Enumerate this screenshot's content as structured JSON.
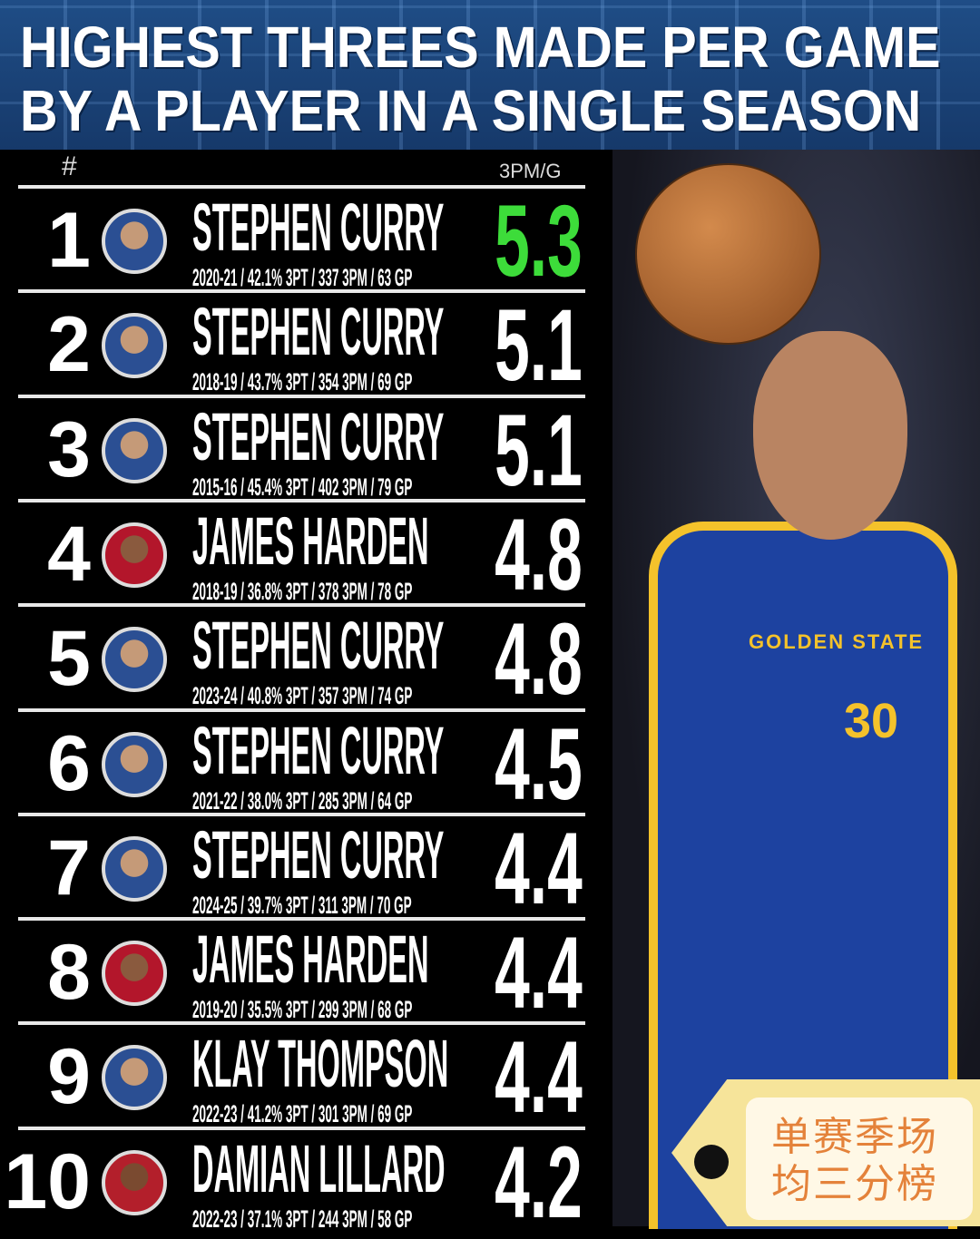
{
  "title": {
    "line1": "HIGHEST THREES MADE PER GAME",
    "line2": "BY A PLAYER IN A SINGLE SEASON"
  },
  "header": {
    "rank": "#",
    "stat": "3PM/G"
  },
  "colors": {
    "leader": "#3ddc3a",
    "banner": "#1f4d86",
    "tag": "#f6e49a"
  },
  "rows": [
    {
      "rank": "1",
      "name": "STEPHEN CURRY",
      "stats": "2020-21 / 42.1% 3PT / 337 3PM / 63 GP",
      "value": "5.3",
      "team": "gsw"
    },
    {
      "rank": "2",
      "name": "STEPHEN CURRY",
      "stats": "2018-19 / 43.7% 3PT / 354 3PM / 69 GP",
      "value": "5.1",
      "team": "gsw"
    },
    {
      "rank": "3",
      "name": "STEPHEN CURRY",
      "stats": "2015-16 / 45.4% 3PT / 402 3PM / 79 GP",
      "value": "5.1",
      "team": "gsw"
    },
    {
      "rank": "4",
      "name": "JAMES HARDEN",
      "stats": "2018-19 / 36.8% 3PT / 378 3PM / 78 GP",
      "value": "4.8",
      "team": "hou"
    },
    {
      "rank": "5",
      "name": "STEPHEN CURRY",
      "stats": "2023-24 / 40.8% 3PT / 357 3PM / 74 GP",
      "value": "4.8",
      "team": "gsw"
    },
    {
      "rank": "6",
      "name": "STEPHEN CURRY",
      "stats": "2021-22 / 38.0% 3PT / 285 3PM / 64 GP",
      "value": "4.5",
      "team": "gsw"
    },
    {
      "rank": "7",
      "name": "STEPHEN CURRY",
      "stats": "2024-25 / 39.7% 3PT / 311 3PM / 70 GP",
      "value": "4.4",
      "team": "gsw"
    },
    {
      "rank": "8",
      "name": "JAMES HARDEN",
      "stats": "2019-20 / 35.5% 3PT / 299 3PM / 68 GP",
      "value": "4.4",
      "team": "hou"
    },
    {
      "rank": "9",
      "name": "KLAY THOMPSON",
      "stats": "2022-23 / 41.2% 3PT / 301 3PM / 69 GP",
      "value": "4.4",
      "team": "gsw"
    },
    {
      "rank": "10",
      "name": "DAMIAN LILLARD",
      "stats": "2022-23 / 37.1% 3PT / 244 3PM / 58 GP",
      "value": "4.2",
      "team": "por"
    }
  ],
  "photo": {
    "jersey_text": "GOLDEN STATE",
    "jersey_number": "30"
  },
  "tag": {
    "line1": "单赛季场",
    "line2": "均三分榜"
  }
}
